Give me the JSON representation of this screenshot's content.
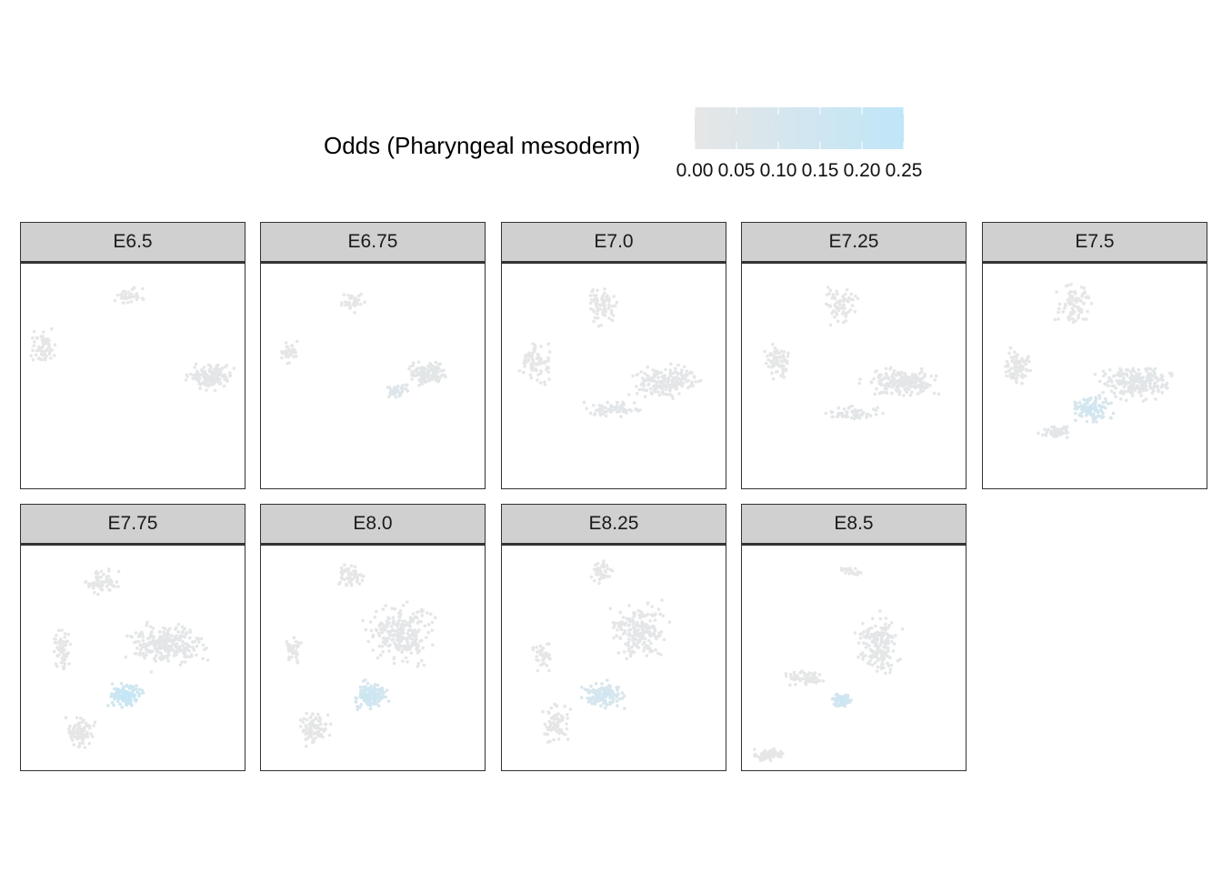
{
  "chart_data": {
    "type": "scatter",
    "legend": {
      "title": "Odds (Pharyngeal mesoderm)",
      "position": "top",
      "scale_min_color": "#e6e6e6",
      "scale_max_color": "#bfe6f8",
      "range": [
        0.0,
        0.25
      ],
      "tick_labels": [
        "0.00",
        "0.05",
        "0.10",
        "0.15",
        "0.20",
        "0.25"
      ]
    },
    "facets": [
      {
        "label": "E6.5",
        "max_odds": 0.06
      },
      {
        "label": "E6.75",
        "max_odds": 0.1
      },
      {
        "label": "E7.0",
        "max_odds": 0.08
      },
      {
        "label": "E7.25",
        "max_odds": 0.08
      },
      {
        "label": "E7.5",
        "max_odds": 0.22
      },
      {
        "label": "E7.75",
        "max_odds": 0.25
      },
      {
        "label": "E8.0",
        "max_odds": 0.22
      },
      {
        "label": "E8.25",
        "max_odds": 0.2
      },
      {
        "label": "E8.5",
        "max_odds": 0.22
      }
    ],
    "grid": false,
    "axes_shown": false
  },
  "colors": {
    "strip_background": "#d0d0d0",
    "border": "#333333",
    "low": "#e6e6e6",
    "high": "#bfe6f8"
  }
}
